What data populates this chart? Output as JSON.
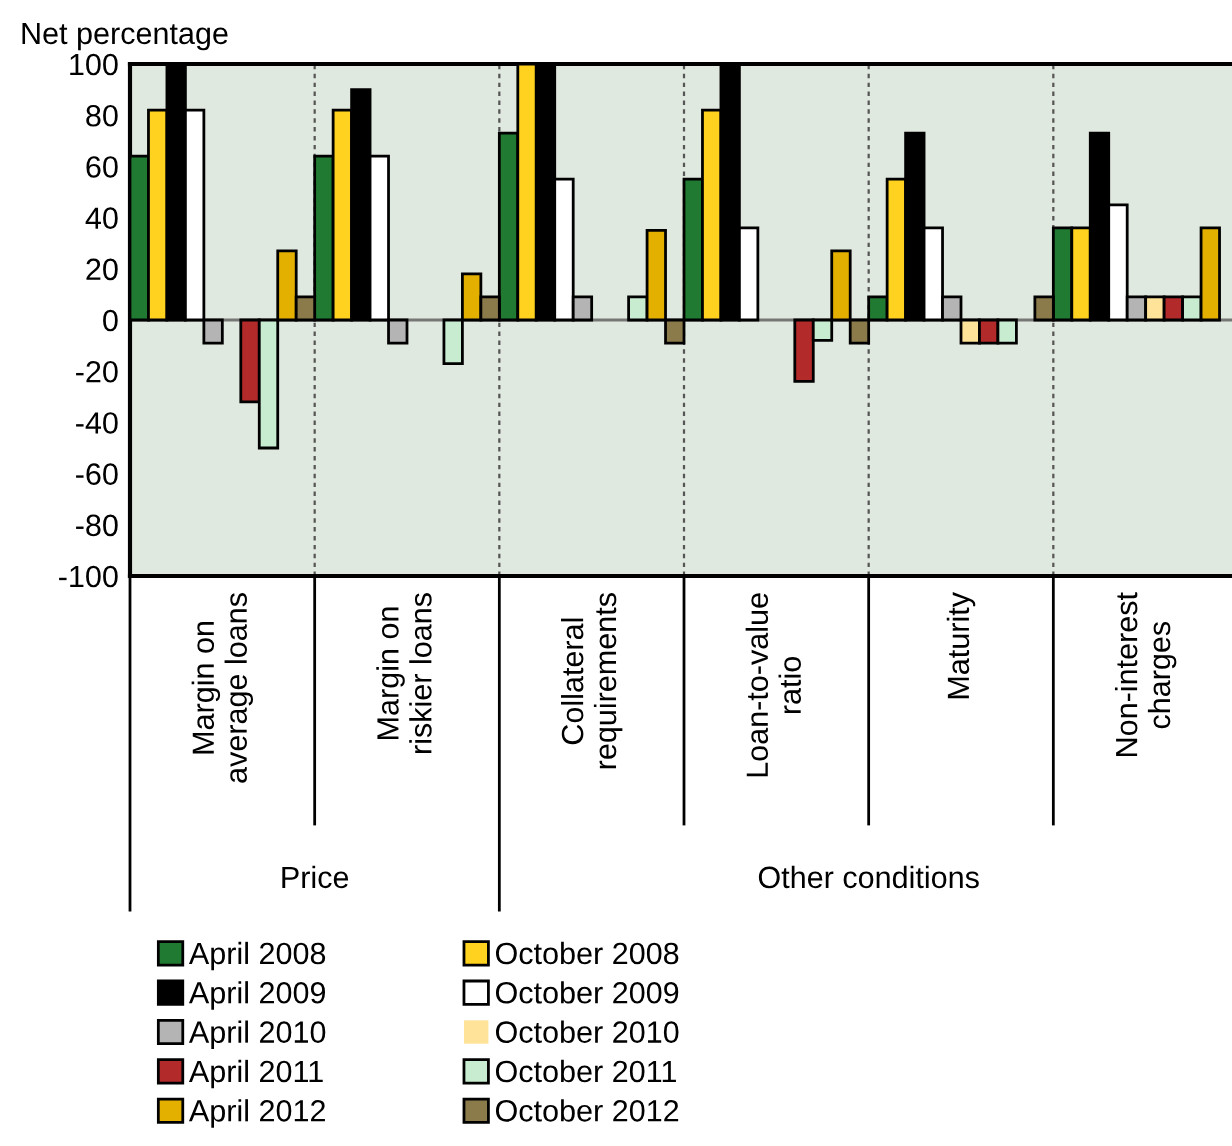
{
  "chart_data": {
    "type": "bar",
    "title": "Net percentage",
    "categories": [
      "Margin on\naverage loans",
      "Margin on\nriskier loans",
      "Collateral\nrequirements",
      "Loan-to-value\nratio",
      "Maturity",
      "Non-interest\ncharges"
    ],
    "series": [
      {
        "name": "April 2008",
        "color": "#217a32",
        "values": [
          64,
          64,
          73,
          55,
          9,
          36
        ]
      },
      {
        "name": "October 2008",
        "color": "#ffd21f",
        "values": [
          82,
          82,
          100,
          82,
          55,
          36
        ]
      },
      {
        "name": "April 2009",
        "color": "#000000",
        "values": [
          100,
          90,
          100,
          100,
          73,
          73
        ]
      },
      {
        "name": "October 2009",
        "color": "#ffffff",
        "values": [
          82,
          64,
          55,
          36,
          36,
          45
        ]
      },
      {
        "name": "April 2010",
        "color": "#b4b4b4",
        "values": [
          -9,
          -9,
          9,
          0,
          9,
          9
        ]
      },
      {
        "name": "October 2010",
        "color": "#ffe399",
        "values": [
          0,
          0,
          0,
          0,
          -9,
          9
        ]
      },
      {
        "name": "April 2011",
        "color": "#b22a2a",
        "values": [
          -32,
          0,
          0,
          -24,
          -9,
          9
        ]
      },
      {
        "name": "October 2011",
        "color": "#c8ecd0",
        "values": [
          -50,
          -17,
          9,
          -8,
          -9,
          9
        ]
      },
      {
        "name": "April 2012",
        "color": "#e3b000",
        "values": [
          27,
          18,
          35,
          27,
          0,
          36
        ]
      },
      {
        "name": "October 2012",
        "color": "#8b7a4a",
        "values": [
          9,
          9,
          -9,
          -9,
          9,
          null
        ]
      }
    ],
    "ylim": [
      -100,
      100
    ],
    "yticks": [
      -100,
      -80,
      -60,
      -40,
      -20,
      0,
      20,
      40,
      60,
      80,
      100
    ],
    "annotations": [
      "Price",
      "Other conditions"
    ],
    "grid": false,
    "legend": "bottom"
  }
}
